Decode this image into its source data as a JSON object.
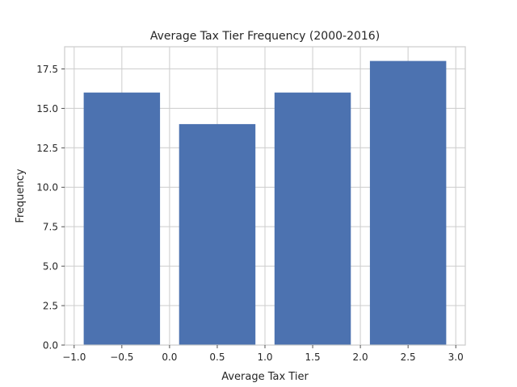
{
  "chart_data": {
    "type": "bar",
    "title": "Average Tax Tier Frequency (2000-2016)",
    "xlabel": "Average Tax Tier",
    "ylabel": "Frequency",
    "x": [
      -0.5,
      0.5,
      1.5,
      2.5
    ],
    "values": [
      16,
      14,
      16,
      18
    ],
    "bar_width": 0.8,
    "xlim": [
      -1.1,
      3.1
    ],
    "ylim": [
      0,
      18.9
    ],
    "xticks": [
      -1.0,
      -0.5,
      0.0,
      0.5,
      1.0,
      1.5,
      2.0,
      2.5,
      3.0
    ],
    "xtick_labels": [
      "−1.0",
      "−0.5",
      "0.0",
      "0.5",
      "1.0",
      "1.5",
      "2.0",
      "2.5",
      "3.0"
    ],
    "yticks": [
      0,
      2.5,
      5,
      7.5,
      10,
      12.5,
      15,
      17.5
    ],
    "ytick_labels": [
      "0.0",
      "2.5",
      "5.0",
      "7.5",
      "10.0",
      "12.5",
      "15.0",
      "17.5"
    ],
    "grid": true,
    "bar_color": "#4c72b0",
    "grid_color": "#cccccc",
    "text_color": "#262626"
  }
}
